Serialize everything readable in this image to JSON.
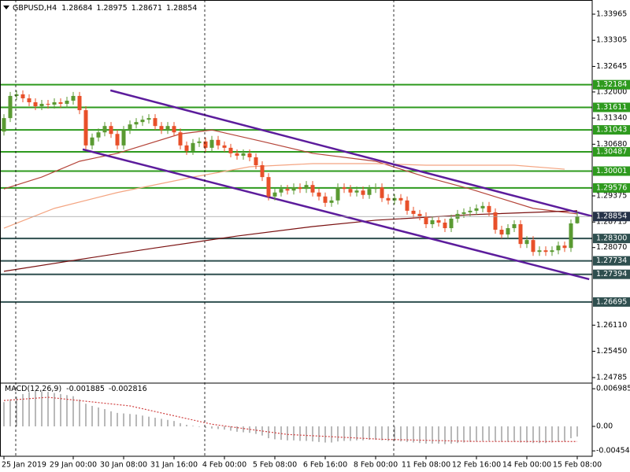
{
  "chart_data": [
    {
      "type": "candlestick",
      "title": "GBPUSD,H4",
      "categories": [
        "25 Jan 2019",
        null,
        null,
        null,
        null,
        null,
        null,
        null,
        null,
        null,
        null,
        "29 Jan 00:00",
        null,
        null,
        null,
        null,
        null,
        null,
        null,
        "30 Jan 08:00",
        null,
        null,
        null,
        null,
        null,
        null,
        null,
        "31 Jan 16:00",
        null,
        null,
        null,
        null,
        null,
        null,
        null,
        "4 Feb 00:00",
        null,
        null,
        null,
        null,
        null,
        null,
        null,
        "5 Feb 08:00",
        null,
        null,
        null,
        null,
        null,
        null,
        null,
        "6 Feb 16:00",
        null,
        null,
        null,
        null,
        null,
        null,
        null,
        "8 Feb 00:00",
        null,
        null,
        null,
        null,
        null,
        null,
        null,
        "11 Feb 08:00",
        null,
        null,
        null,
        null,
        null,
        null,
        null,
        "12 Feb 16:00",
        null,
        null,
        null,
        null,
        null,
        null,
        null,
        "14 Feb 00:00",
        null,
        null,
        null,
        null,
        null,
        null,
        null,
        "15 Feb 08:00"
      ],
      "open": [
        1.31,
        1.3134,
        1.319,
        1.3194,
        1.3184,
        1.3174,
        1.3164,
        1.317,
        1.3168,
        1.3174,
        1.317,
        1.3178,
        1.319,
        1.3154,
        1.3065,
        1.3085,
        1.3098,
        1.3114,
        1.3094,
        1.3065,
        1.3104,
        1.3118,
        1.3124,
        1.313,
        1.3134,
        1.3114,
        1.3104,
        1.3114,
        1.3098,
        1.3065,
        1.3051,
        1.3071,
        1.3075,
        1.3059,
        1.3079,
        1.3065,
        1.3059,
        1.3045,
        1.3039,
        1.3045,
        1.3035,
        1.3015,
        1.2985,
        1.2936,
        1.2946,
        1.2955,
        1.2951,
        1.2959,
        1.2955,
        1.2965,
        1.2946,
        1.2936,
        1.292,
        1.2926,
        1.2959,
        1.2955,
        1.2946,
        1.2951,
        1.294,
        1.2955,
        1.2959,
        1.2932,
        1.2926,
        1.2932,
        1.2926,
        1.29,
        1.2892,
        1.2886,
        1.2866,
        1.2876,
        1.287,
        1.2856,
        1.288,
        1.2892,
        1.2896,
        1.29,
        1.2906,
        1.2912,
        1.2896,
        1.2852,
        1.284,
        1.2856,
        1.2866,
        1.2816,
        1.2826,
        1.2796,
        1.28,
        1.2796,
        1.28,
        1.2812,
        1.2806,
        1.28684
      ],
      "high": [
        1.3144,
        1.32,
        1.3204,
        1.3204,
        1.3194,
        1.3184,
        1.318,
        1.318,
        1.3184,
        1.3184,
        1.3188,
        1.32,
        1.32,
        1.3164,
        1.3095,
        1.3108,
        1.3124,
        1.3124,
        1.3104,
        1.3114,
        1.3128,
        1.3134,
        1.314,
        1.3144,
        1.3144,
        1.3124,
        1.3124,
        1.3124,
        1.3108,
        1.3075,
        1.3081,
        1.3085,
        1.3085,
        1.3089,
        1.3089,
        1.3075,
        1.3069,
        1.3055,
        1.3055,
        1.3055,
        1.3045,
        1.3025,
        1.2995,
        1.2956,
        1.2965,
        1.2965,
        1.2969,
        1.2969,
        1.2975,
        1.2975,
        1.2956,
        1.2946,
        1.2936,
        1.2969,
        1.2969,
        1.2965,
        1.2961,
        1.2961,
        1.2965,
        1.2969,
        1.2969,
        1.2942,
        1.2942,
        1.2942,
        1.2936,
        1.291,
        1.2902,
        1.2896,
        1.2886,
        1.2886,
        1.288,
        1.289,
        1.2902,
        1.2906,
        1.291,
        1.2916,
        1.2922,
        1.2922,
        1.2906,
        1.2862,
        1.2866,
        1.2876,
        1.2876,
        1.2836,
        1.2836,
        1.281,
        1.281,
        1.281,
        1.2822,
        1.2822,
        1.2878,
        1.28975
      ],
      "low": [
        1.309,
        1.3124,
        1.318,
        1.3174,
        1.3164,
        1.3154,
        1.3154,
        1.3158,
        1.3158,
        1.316,
        1.316,
        1.3168,
        1.3144,
        1.3055,
        1.3055,
        1.3075,
        1.3088,
        1.3084,
        1.3055,
        1.3055,
        1.3094,
        1.3108,
        1.3114,
        1.312,
        1.3104,
        1.3094,
        1.3094,
        1.3088,
        1.3055,
        1.3041,
        1.3041,
        1.3061,
        1.3049,
        1.3049,
        1.3055,
        1.3049,
        1.3035,
        1.3029,
        1.3029,
        1.3025,
        1.3005,
        1.2975,
        1.2926,
        1.2926,
        1.2936,
        1.2941,
        1.2941,
        1.2945,
        1.2945,
        1.2936,
        1.2926,
        1.291,
        1.291,
        1.2916,
        1.2945,
        1.2936,
        1.2936,
        1.293,
        1.293,
        1.2945,
        1.2922,
        1.2916,
        1.2916,
        1.2916,
        1.289,
        1.2882,
        1.2876,
        1.2856,
        1.2856,
        1.286,
        1.2846,
        1.2846,
        1.287,
        1.2882,
        1.2886,
        1.289,
        1.2896,
        1.2886,
        1.2842,
        1.283,
        1.283,
        1.2846,
        1.2806,
        1.2806,
        1.2786,
        1.2786,
        1.2786,
        1.2786,
        1.279,
        1.2796,
        1.2796,
        1.28671
      ],
      "close": [
        1.3134,
        1.319,
        1.3194,
        1.3184,
        1.3174,
        1.3164,
        1.317,
        1.3168,
        1.3174,
        1.317,
        1.3178,
        1.319,
        1.3154,
        1.3065,
        1.3085,
        1.3098,
        1.3114,
        1.3094,
        1.3065,
        1.3104,
        1.3118,
        1.3124,
        1.313,
        1.3134,
        1.3114,
        1.3104,
        1.3114,
        1.3098,
        1.3065,
        1.3051,
        1.3071,
        1.3075,
        1.3059,
        1.3079,
        1.3065,
        1.3059,
        1.3045,
        1.3039,
        1.3045,
        1.3035,
        1.3015,
        1.2985,
        1.2936,
        1.2946,
        1.2955,
        1.2951,
        1.2959,
        1.2955,
        1.2965,
        1.2946,
        1.2936,
        1.292,
        1.2926,
        1.2959,
        1.2955,
        1.2946,
        1.2951,
        1.294,
        1.2955,
        1.2959,
        1.2932,
        1.2926,
        1.2932,
        1.2926,
        1.29,
        1.2892,
        1.2886,
        1.2866,
        1.2876,
        1.287,
        1.2856,
        1.288,
        1.2892,
        1.2896,
        1.29,
        1.2906,
        1.2912,
        1.2896,
        1.2852,
        1.284,
        1.2856,
        1.2866,
        1.2816,
        1.2826,
        1.2796,
        1.28,
        1.2796,
        1.28,
        1.2812,
        1.2806,
        1.2868,
        1.28854
      ],
      "up_color": "#5a9a32",
      "down_color": "#e8502a",
      "series": [
        {
          "color": "#b5453a",
          "x": [
            0,
            6,
            12,
            18,
            28,
            33,
            41,
            49,
            59,
            67,
            74,
            84,
            91
          ],
          "values": [
            1.2955,
            1.2985,
            1.3025,
            1.3045,
            1.3094,
            1.3104,
            1.3075,
            1.3045,
            1.3025,
            1.2985,
            1.2955,
            1.2906,
            1.2892
          ]
        },
        {
          "color": "#f4a582",
          "x": [
            0,
            8,
            18,
            30,
            39,
            49,
            59,
            67,
            81,
            89
          ],
          "values": [
            1.2856,
            1.2906,
            1.2946,
            1.2985,
            1.3011,
            1.3019,
            1.3019,
            1.3015,
            1.3015,
            1.3005
          ]
        },
        {
          "color": "#7a1010",
          "x": [
            0,
            12,
            24,
            37,
            49,
            59,
            74,
            91
          ],
          "values": [
            1.2747,
            1.2777,
            1.2806,
            1.2836,
            1.286,
            1.2876,
            1.289,
            1.29
          ]
        }
      ],
      "trendlines": [
        {
          "color": "#5c1c9c",
          "x": [
            16.9,
            93.4
          ],
          "values": [
            1.3204,
            1.2886
          ]
        },
        {
          "color": "#5c1c9c",
          "x": [
            12.5,
            92.9
          ],
          "values": [
            1.3055,
            1.2727
          ]
        }
      ],
      "levels": [
        {
          "price": 1.32184,
          "color": "#2e9a1e"
        },
        {
          "price": 1.31611,
          "color": "#2e9a1e"
        },
        {
          "price": 1.31043,
          "color": "#2e9a1e"
        },
        {
          "price": 1.30487,
          "color": "#2e9a1e"
        },
        {
          "price": 1.30001,
          "color": "#2e9a1e"
        },
        {
          "price": 1.29576,
          "color": "#2e9a1e"
        },
        {
          "price": 1.283,
          "label": "1.28300",
          "color": "#2f4f4f"
        },
        {
          "price": 1.27734,
          "color": "#2f4f4f"
        },
        {
          "price": 1.27394,
          "color": "#2f4f4f"
        },
        {
          "price": 1.26695,
          "color": "#2f4f4f"
        }
      ],
      "ylim": [
        1.24646,
        1.34323
      ],
      "yticks": [
        1.33965,
        1.33305,
        1.32645,
        {
          "value": 1.32,
          "label": "1.32000"
        },
        {
          "value": 1.3134,
          "label": "1.31340"
        },
        {
          "value": 1.3068,
          "label": "1.30680"
        },
        1.29375,
        1.28715,
        {
          "value": 1.2807,
          "label": "1.28070"
        },
        {
          "value": 1.2611,
          "label": "1.26110"
        },
        {
          "value": 1.2545,
          "label": "1.25450"
        },
        1.24785
      ]
    },
    {
      "type": "macd",
      "title": "MACD(12,26,9)",
      "color": "#8a8a8a",
      "values": [
        0.0045,
        0.005,
        0.0055,
        0.006,
        0.0063,
        0.0066,
        0.0065,
        0.0064,
        0.0062,
        0.006,
        0.0058,
        0.0056,
        0.005,
        0.0042,
        0.0038,
        0.0035,
        0.0032,
        0.0028,
        0.0025,
        0.0024,
        0.0023,
        0.0022,
        0.002,
        0.0018,
        0.0016,
        0.0014,
        0.0012,
        0.001,
        0.0006,
        0.0003,
        0.0001,
        -0.0001,
        -0.0003,
        -0.0004,
        -0.0005,
        -0.0006,
        -0.0008,
        -0.001,
        -0.0011,
        -0.0012,
        -0.0014,
        -0.0017,
        -0.0022,
        -0.0024,
        -0.0025,
        -0.0026,
        -0.0026,
        -0.0027,
        -0.0027,
        -0.0028,
        -0.0029,
        -0.003,
        -0.003,
        -0.0028,
        -0.0027,
        -0.0027,
        -0.0026,
        -0.0026,
        -0.0025,
        -0.0025,
        -0.0026,
        -0.0027,
        -0.0027,
        -0.0028,
        -0.0029,
        -0.003,
        -0.0031,
        -0.0032,
        -0.0032,
        -0.0032,
        -0.0033,
        -0.0032,
        -0.0031,
        -0.003,
        -0.0029,
        -0.0028,
        -0.0027,
        -0.0027,
        -0.0028,
        -0.0029,
        -0.0029,
        -0.0029,
        -0.003,
        -0.003,
        -0.0031,
        -0.0031,
        -0.0031,
        -0.003,
        -0.0029,
        -0.0028,
        -0.0022,
        -0.001885
      ],
      "series": [
        {
          "color": "#d04040",
          "x": [
            0,
            7,
            20,
            33,
            45,
            60,
            75,
            91
          ],
          "values": [
            0.0048,
            0.0054,
            0.0038,
            0.0004,
            -0.0015,
            -0.0024,
            -0.0028,
            -0.002816
          ]
        }
      ],
      "ylim": [
        -0.00555,
        0.00803
      ],
      "yticks": [
        0.006985,
        {
          "value": 0,
          "label": "0.00"
        },
        -0.004548
      ]
    }
  ]
}
